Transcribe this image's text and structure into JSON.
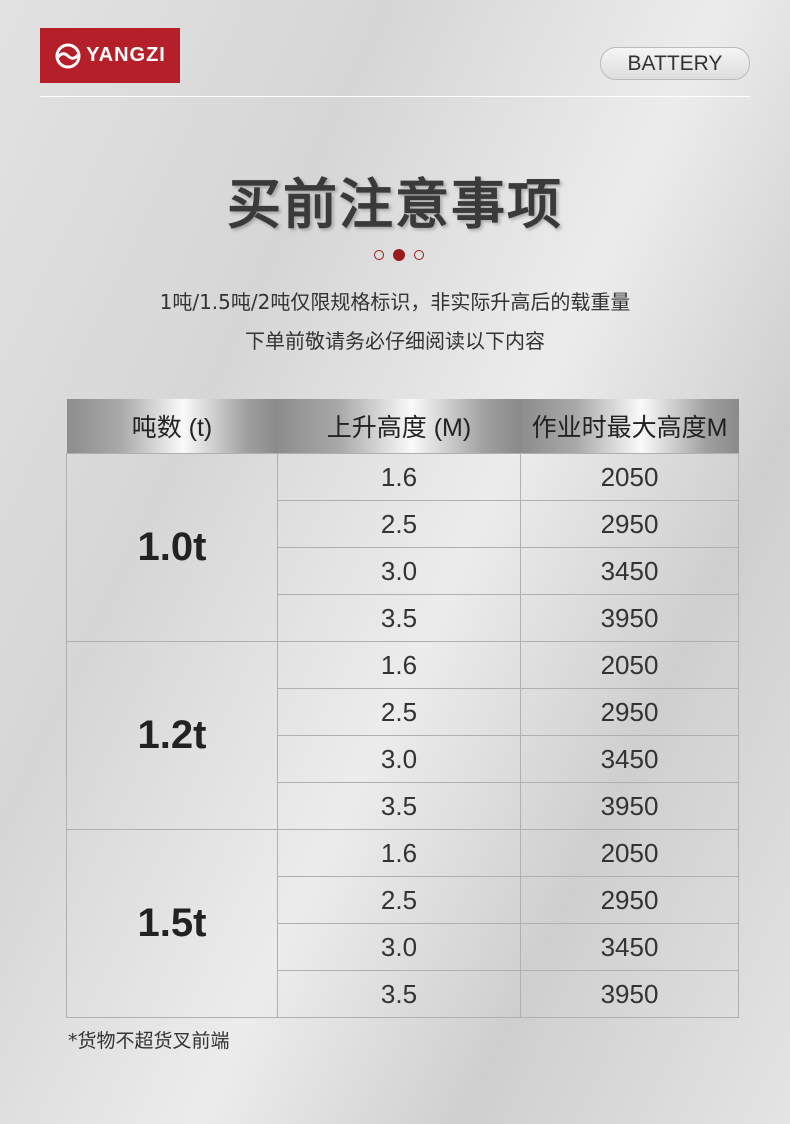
{
  "brand": {
    "logo_text": "YANGZI",
    "color": "#b51f2a"
  },
  "badge": "BATTERY",
  "title": "买前注意事项",
  "subtitle_lines": [
    "1吨/1.5吨/2吨仅限规格标识，非实际升高后的载重量",
    "下单前敬请务必仔细阅读以下内容"
  ],
  "table": {
    "headers": [
      "吨数 (t)",
      "上升高度 (M)",
      "作业时最大高度M"
    ],
    "groups": [
      {
        "tonnage": "1.0t",
        "rows": [
          [
            "1.6",
            "2050"
          ],
          [
            "2.5",
            "2950"
          ],
          [
            "3.0",
            "3450"
          ],
          [
            "3.5",
            "3950"
          ]
        ]
      },
      {
        "tonnage": "1.2t",
        "rows": [
          [
            "1.6",
            "2050"
          ],
          [
            "2.5",
            "2950"
          ],
          [
            "3.0",
            "3450"
          ],
          [
            "3.5",
            "3950"
          ]
        ]
      },
      {
        "tonnage": "1.5t",
        "rows": [
          [
            "1.6",
            "2050"
          ],
          [
            "2.5",
            "2950"
          ],
          [
            "3.0",
            "3450"
          ],
          [
            "3.5",
            "3950"
          ]
        ]
      }
    ]
  },
  "note": "*货物不超货叉前端"
}
